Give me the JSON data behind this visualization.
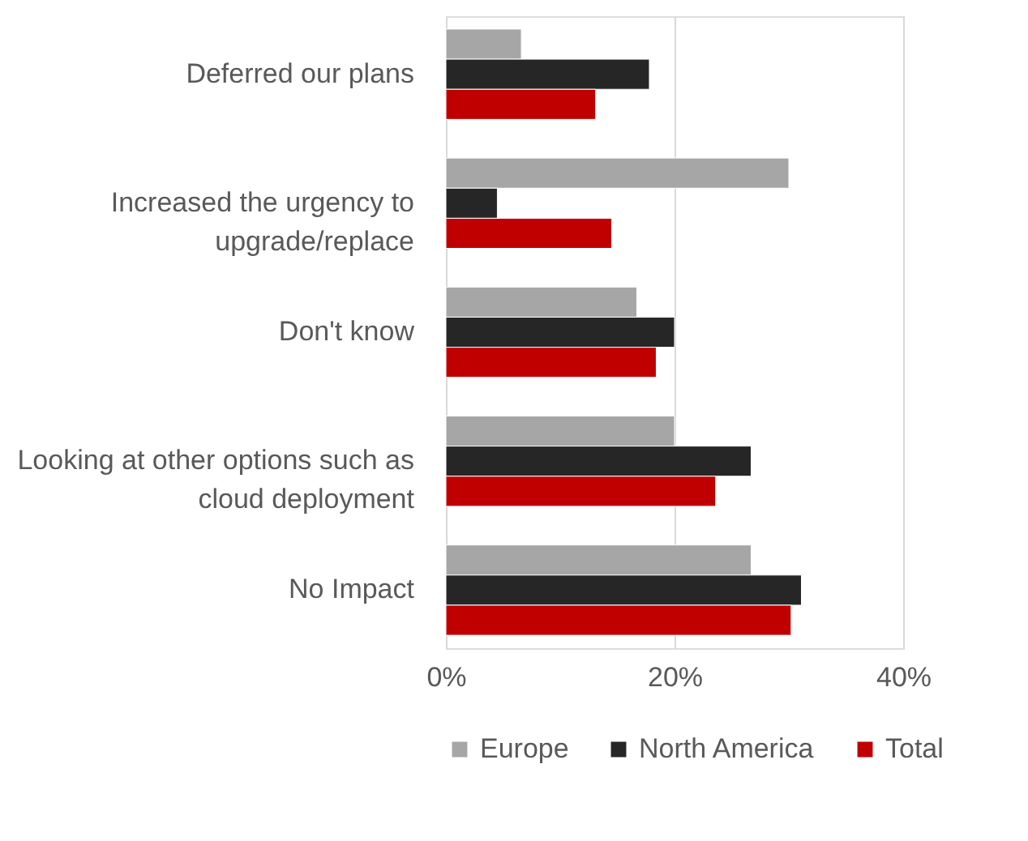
{
  "chart_data": {
    "type": "bar",
    "orientation": "horizontal",
    "categories": [
      "Deferred our plans",
      "Increased the urgency to upgrade/replace",
      "Don't know",
      "Looking at other options such as cloud deployment",
      "No Impact"
    ],
    "series": [
      {
        "name": "Europe",
        "color": "#a6a6a6",
        "values": [
          6.6,
          30.0,
          16.7,
          20.0,
          26.7
        ]
      },
      {
        "name": "North America",
        "color": "#262626",
        "values": [
          17.8,
          4.5,
          20.0,
          26.7,
          31.1
        ]
      },
      {
        "name": "Total",
        "color": "#c00000",
        "values": [
          13.1,
          14.5,
          18.4,
          23.6,
          30.2
        ]
      }
    ],
    "xlim": [
      0,
      40
    ],
    "xticks": [
      {
        "value": 0,
        "label": "0%"
      },
      {
        "value": 20,
        "label": "20%"
      },
      {
        "value": 40,
        "label": "40%"
      }
    ],
    "grid": "x",
    "legend": "bottom"
  }
}
